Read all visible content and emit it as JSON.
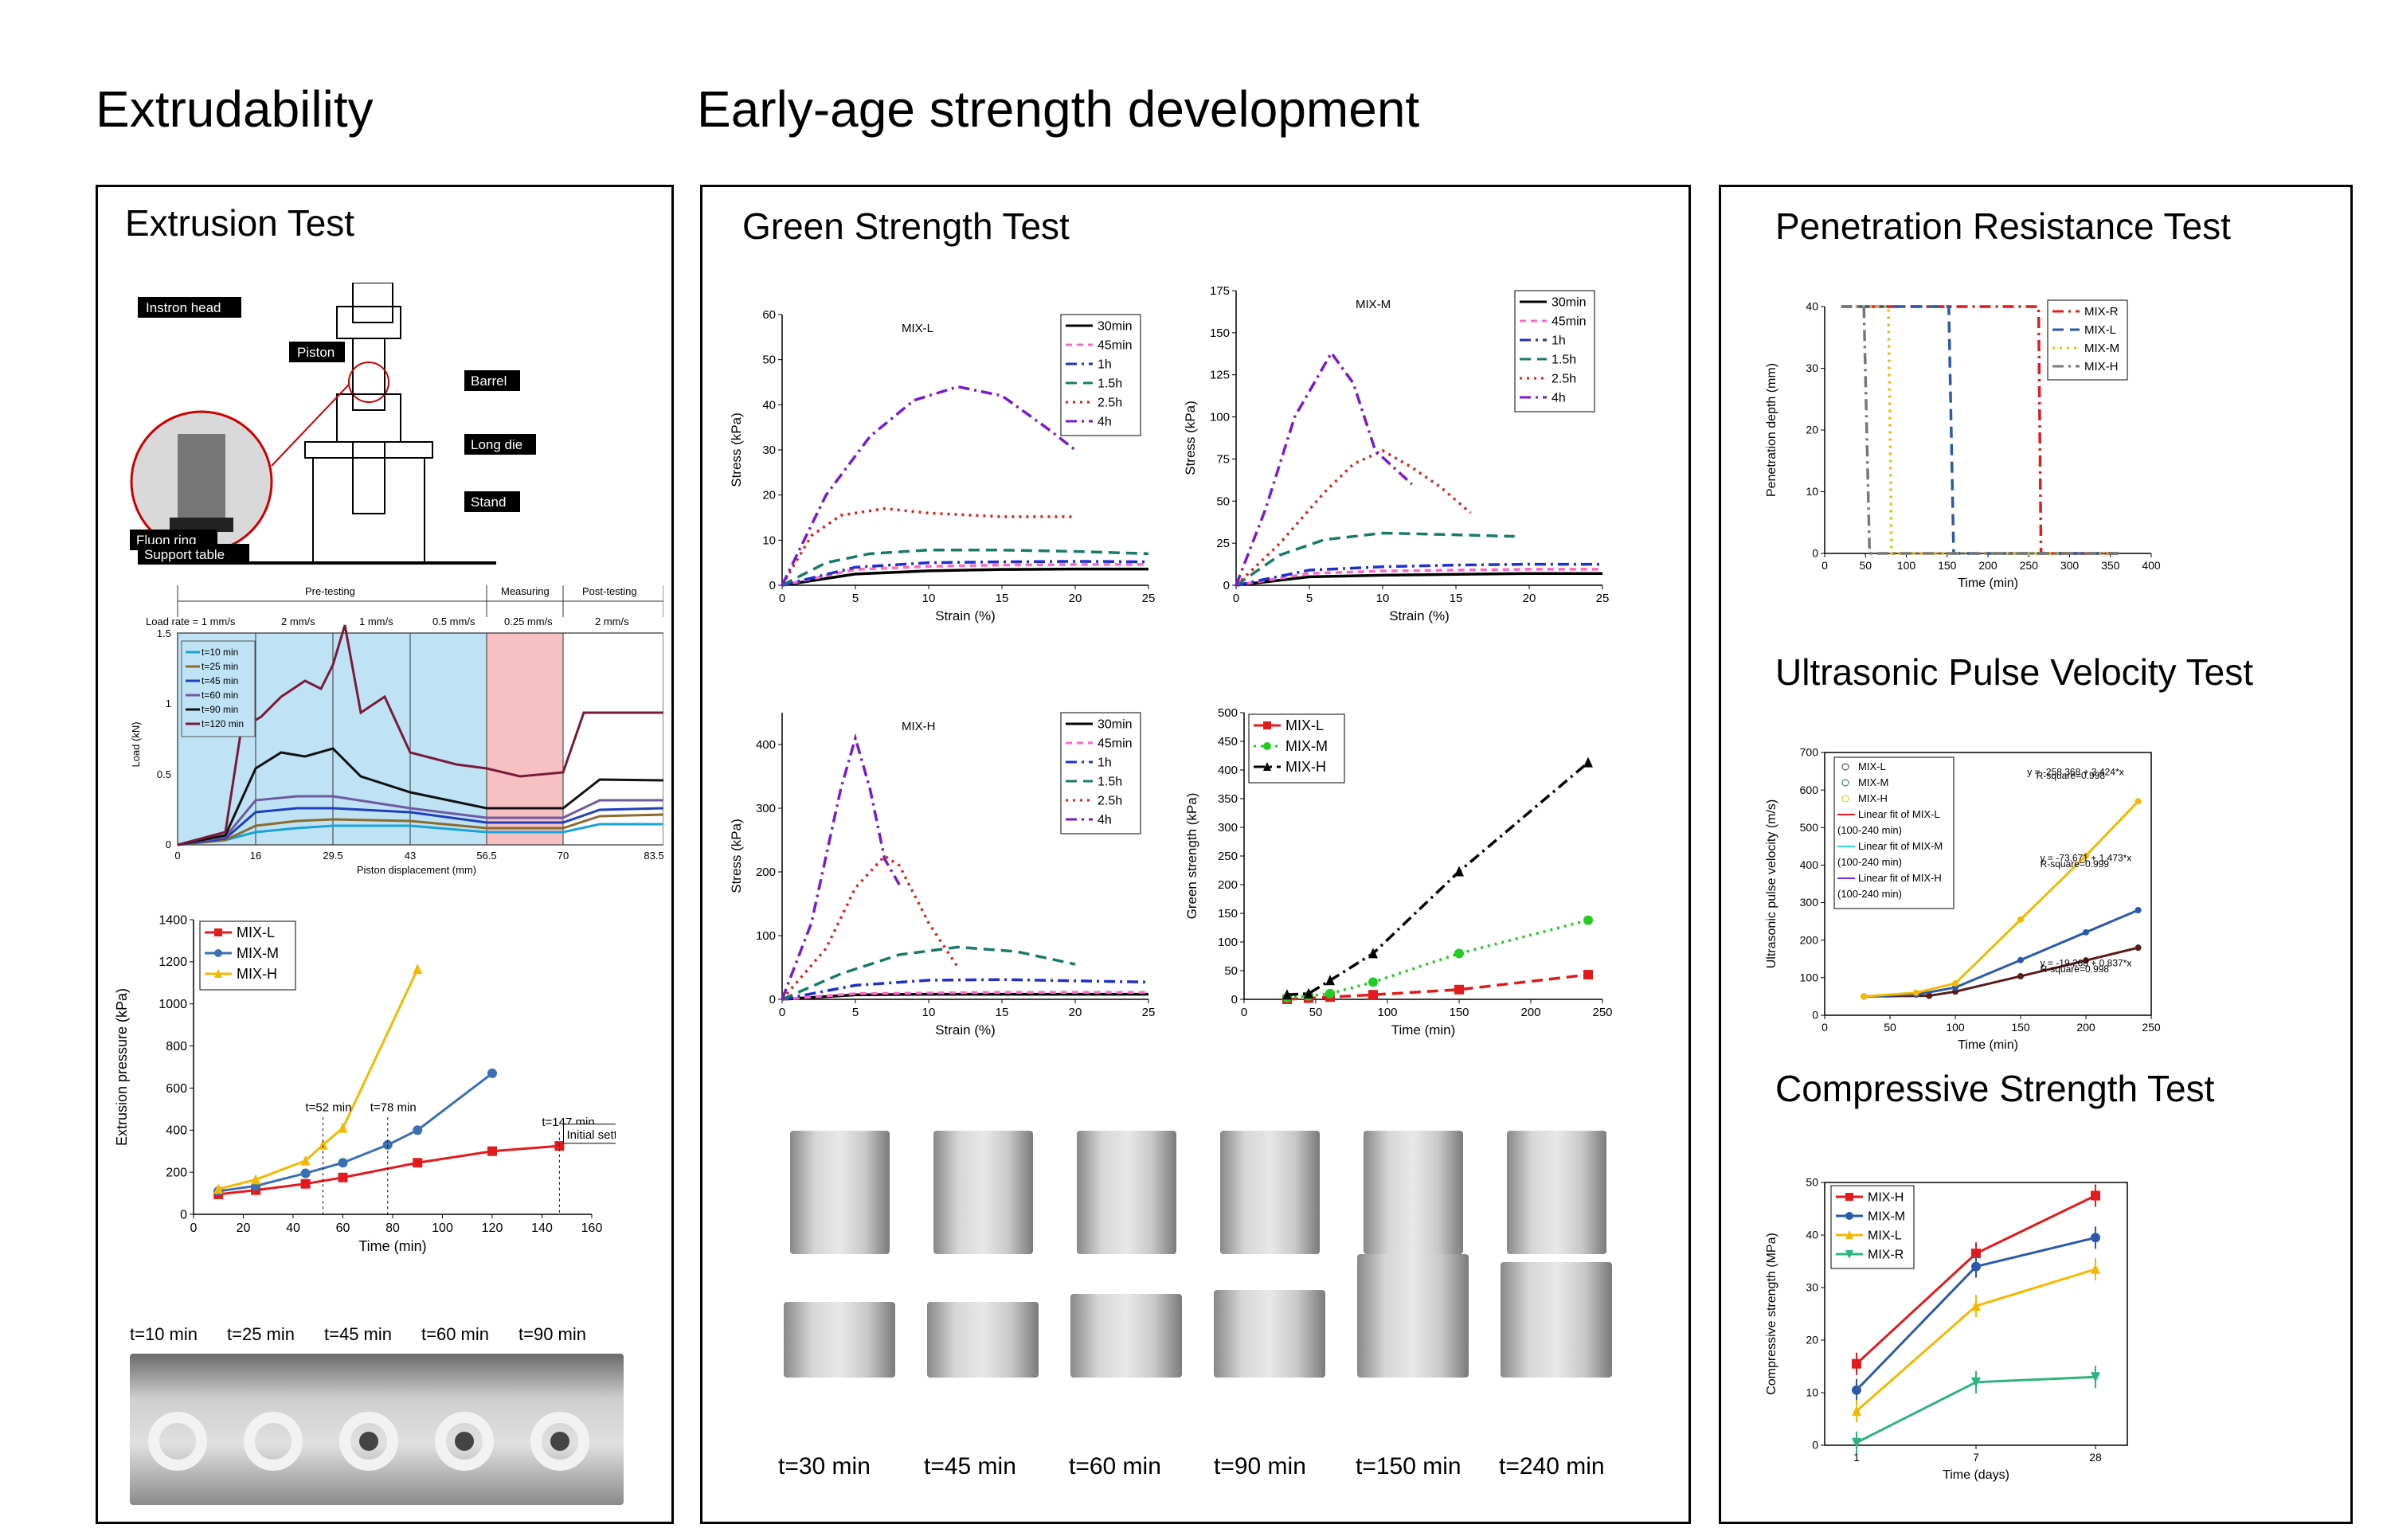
{
  "sections": {
    "extrudability": "Extrudability",
    "early_age": "Early-age strength development"
  },
  "panels": {
    "extrusion": "Extrusion Test",
    "green": "Green Strength Test",
    "penetration": "Penetration Resistance Test",
    "upv": "Ultrasonic Pulse Velocity Test",
    "compressive": "Compressive Strength Test"
  },
  "schematic": {
    "labels": [
      "Instron head",
      "Piston",
      "Barrel",
      "Long die",
      "Fluon ring",
      "Stand",
      "Support table"
    ]
  },
  "load_chart": {
    "phases": [
      "Pre-testing",
      "Measuring",
      "Post-testing"
    ],
    "rates": [
      "Load rate = 1 mm/s",
      "2 mm/s",
      "1 mm/s",
      "0.5 mm/s",
      "0.25 mm/s",
      "2 mm/s"
    ],
    "xticks": [
      "0",
      "16",
      "29.5",
      "43",
      "56.5",
      "70",
      "83.5"
    ],
    "yticks": [
      "0",
      "0.5",
      "1",
      "1.5"
    ],
    "xlabel": "Piston displacement (mm)",
    "ylabel": "Load (kN)",
    "legend": [
      "t=10 min",
      "t=25 min",
      "t=45 min",
      "t=60 min",
      "t=90 min",
      "t=120 min"
    ]
  },
  "extrusion_photos": {
    "labels": [
      "t=10 min",
      "t=25 min",
      "t=45 min",
      "t=60 min",
      "t=90 min"
    ]
  },
  "green_photos": {
    "labels": [
      "t=30 min",
      "t=45 min",
      "t=60 min",
      "t=90 min",
      "t=150 min",
      "t=240 min"
    ]
  },
  "colors": {
    "L": "#e31a1c",
    "M": "#3a6fb0",
    "H": "#f5b800",
    "R": "#2cb57a"
  },
  "chart_data": [
    {
      "id": "extrusion_pressure",
      "type": "line",
      "title": "",
      "xlabel": "Time (min)",
      "ylabel": "Extrusion pressure (kPa)",
      "xlim": [
        0,
        160
      ],
      "ylim": [
        0,
        1400
      ],
      "xticks": [
        0,
        20,
        40,
        60,
        80,
        100,
        120,
        140,
        160
      ],
      "yticks": [
        0,
        200,
        400,
        600,
        800,
        1000,
        1200,
        1400
      ],
      "series": [
        {
          "name": "MIX-L",
          "color": "#e31a1c",
          "marker": "s",
          "x": [
            10,
            25,
            45,
            60,
            90,
            120,
            147
          ],
          "y": [
            95,
            115,
            145,
            175,
            245,
            300,
            325
          ]
        },
        {
          "name": "MIX-M",
          "color": "#3a6fb0",
          "marker": "o",
          "x": [
            10,
            25,
            45,
            60,
            78,
            90,
            120
          ],
          "y": [
            110,
            135,
            195,
            245,
            330,
            400,
            670
          ]
        },
        {
          "name": "MIX-H",
          "color": "#f5b800",
          "marker": "^",
          "x": [
            10,
            25,
            45,
            52,
            60,
            90
          ],
          "y": [
            120,
            165,
            255,
            330,
            410,
            1165
          ]
        }
      ],
      "annotations": [
        "t=52 min",
        "t=78 min",
        "t=147 min",
        "Initial setting time"
      ]
    },
    {
      "id": "mix_l",
      "type": "line",
      "title": "MIX-L",
      "xlabel": "Strain (%)",
      "ylabel": "Stress (kPa)",
      "xlim": [
        0,
        25
      ],
      "ylim": [
        0,
        60
      ],
      "xticks": [
        0,
        5,
        10,
        15,
        20,
        25
      ],
      "yticks": [
        0,
        10,
        20,
        30,
        40,
        50,
        60
      ],
      "series": [
        {
          "name": "30min",
          "x": [
            0,
            5,
            10,
            15,
            20,
            25
          ],
          "y": [
            0,
            2.5,
            3.2,
            3.5,
            3.6,
            3.6
          ]
        },
        {
          "name": "45min",
          "x": [
            0,
            5,
            10,
            15,
            20,
            25
          ],
          "y": [
            0,
            3.5,
            4.2,
            4.5,
            4.6,
            4.6
          ]
        },
        {
          "name": "1h",
          "x": [
            0,
            5,
            10,
            15,
            20,
            25
          ],
          "y": [
            0,
            4,
            5,
            5.2,
            5.3,
            5.2
          ]
        },
        {
          "name": "1.5h",
          "x": [
            0,
            3,
            6,
            10,
            15,
            20,
            25
          ],
          "y": [
            0,
            5,
            7,
            7.8,
            7.8,
            7.5,
            7
          ]
        },
        {
          "name": "2.5h",
          "x": [
            0,
            2,
            4,
            7,
            10,
            15,
            20
          ],
          "y": [
            0,
            11,
            15.5,
            17,
            16,
            15.2,
            15.2
          ]
        },
        {
          "name": "4h",
          "x": [
            0,
            3,
            6,
            9,
            12,
            15,
            18,
            20
          ],
          "y": [
            0,
            20,
            33,
            41,
            44,
            42,
            35,
            30
          ]
        }
      ]
    },
    {
      "id": "mix_m",
      "type": "line",
      "title": "MIX-M",
      "xlabel": "Strain (%)",
      "ylabel": "Stress (kPa)",
      "xlim": [
        0,
        25
      ],
      "ylim": [
        0,
        175
      ],
      "xticks": [
        0,
        5,
        10,
        15,
        20,
        25
      ],
      "yticks": [
        0,
        25,
        50,
        75,
        100,
        125,
        150,
        175
      ],
      "series": [
        {
          "name": "30min",
          "x": [
            0,
            5,
            10,
            15,
            20,
            25
          ],
          "y": [
            0,
            5,
            6,
            6.5,
            7,
            7
          ]
        },
        {
          "name": "45min",
          "x": [
            0,
            5,
            10,
            15,
            20,
            25
          ],
          "y": [
            0,
            7,
            8.5,
            9,
            9.5,
            9.5
          ]
        },
        {
          "name": "1h",
          "x": [
            0,
            5,
            10,
            15,
            20,
            25
          ],
          "y": [
            0,
            9,
            11,
            12,
            12.5,
            12.5
          ]
        },
        {
          "name": "1.5h",
          "x": [
            0,
            3,
            6,
            10,
            15,
            19
          ],
          "y": [
            0,
            18,
            27,
            31,
            30,
            29
          ]
        },
        {
          "name": "2.5h",
          "x": [
            0,
            3,
            6,
            8,
            10,
            12,
            14,
            16
          ],
          "y": [
            0,
            25,
            55,
            72,
            80,
            70,
            58,
            43
          ]
        },
        {
          "name": "4h",
          "x": [
            0,
            2,
            4,
            6.5,
            8,
            9.5,
            12
          ],
          "y": [
            0,
            45,
            100,
            138,
            120,
            80,
            60
          ]
        }
      ]
    },
    {
      "id": "mix_h",
      "type": "line",
      "title": "MIX-H",
      "xlabel": "Strain (%)",
      "ylabel": "Stress (kPa)",
      "xlim": [
        0,
        25
      ],
      "ylim": [
        0,
        450
      ],
      "xticks": [
        0,
        5,
        10,
        15,
        20,
        25
      ],
      "yticks": [
        0,
        100,
        200,
        300,
        400
      ],
      "series": [
        {
          "name": "30min",
          "x": [
            0,
            5,
            10,
            15,
            20,
            25
          ],
          "y": [
            0,
            7,
            8,
            8,
            8,
            8
          ]
        },
        {
          "name": "45min",
          "x": [
            0,
            5,
            10,
            15,
            20,
            25
          ],
          "y": [
            0,
            9,
            10,
            11,
            11,
            11
          ]
        },
        {
          "name": "1h",
          "x": [
            0,
            5,
            10,
            15,
            20,
            25
          ],
          "y": [
            0,
            22,
            30,
            31,
            29,
            27
          ]
        },
        {
          "name": "1.5h",
          "x": [
            0,
            4,
            8,
            12,
            16,
            20
          ],
          "y": [
            0,
            40,
            70,
            82,
            75,
            55
          ]
        },
        {
          "name": "2.5h",
          "x": [
            0,
            3,
            5,
            7,
            8,
            10,
            12
          ],
          "y": [
            0,
            80,
            175,
            225,
            210,
            120,
            50
          ]
        },
        {
          "name": "4h",
          "x": [
            0,
            2,
            4,
            5,
            6,
            7,
            8
          ],
          "y": [
            0,
            120,
            330,
            410,
            330,
            220,
            180
          ]
        }
      ]
    },
    {
      "id": "green_strength",
      "type": "line",
      "title": "",
      "xlabel": "Time (min)",
      "ylabel": "Green strength (kPa)",
      "xlim": [
        0,
        250
      ],
      "ylim": [
        0,
        500
      ],
      "xticks": [
        0,
        50,
        100,
        150,
        200,
        250
      ],
      "yticks": [
        0,
        50,
        100,
        150,
        200,
        250,
        300,
        350,
        400,
        450,
        500
      ],
      "series": [
        {
          "name": "MIX-L",
          "x": [
            30,
            45,
            60,
            90,
            150,
            240
          ],
          "y": [
            0,
            2,
            4,
            8,
            17,
            43
          ]
        },
        {
          "name": "MIX-M",
          "x": [
            30,
            45,
            60,
            90,
            150,
            240
          ],
          "y": [
            3,
            6,
            10,
            30,
            80,
            138
          ]
        },
        {
          "name": "MIX-H",
          "x": [
            30,
            45,
            60,
            90,
            150,
            240
          ],
          "y": [
            8,
            10,
            33,
            80,
            223,
            413
          ]
        }
      ]
    },
    {
      "id": "penetration",
      "type": "line",
      "title": "",
      "xlabel": "Time (min)",
      "ylabel": "Penetration depth (mm)",
      "xlim": [
        0,
        400
      ],
      "ylim": [
        0,
        40
      ],
      "xticks": [
        0,
        50,
        100,
        150,
        200,
        250,
        300,
        350,
        400
      ],
      "yticks": [
        0,
        10,
        20,
        30,
        40
      ],
      "series": [
        {
          "name": "MIX-R",
          "x": [
            20,
            262,
            265,
            360
          ],
          "y": [
            40,
            40,
            0,
            0
          ]
        },
        {
          "name": "MIX-L",
          "x": [
            20,
            152,
            158,
            360
          ],
          "y": [
            40,
            40,
            0,
            0
          ]
        },
        {
          "name": "MIX-M",
          "x": [
            20,
            78,
            82,
            360
          ],
          "y": [
            40,
            40,
            0,
            0
          ]
        },
        {
          "name": "MIX-H",
          "x": [
            20,
            48,
            55,
            360
          ],
          "y": [
            40,
            40,
            0,
            0
          ]
        }
      ]
    },
    {
      "id": "upv",
      "type": "line",
      "title": "",
      "xlabel": "Time (min)",
      "ylabel": "Ultrasonic pulse velocity (m/s)",
      "xlim": [
        0,
        250
      ],
      "ylim": [
        0,
        700
      ],
      "xticks": [
        0,
        50,
        100,
        150,
        200,
        250
      ],
      "yticks": [
        0,
        100,
        200,
        300,
        400,
        500,
        600,
        700
      ],
      "series": [
        {
          "name": "MIX-L",
          "x": [
            30,
            80,
            100,
            150,
            200,
            240
          ],
          "y": [
            50,
            52,
            63,
            104,
            146,
            180
          ]
        },
        {
          "name": "MIX-M",
          "x": [
            30,
            70,
            100,
            150,
            200,
            240
          ],
          "y": [
            50,
            55,
            74,
            147,
            221,
            280
          ]
        },
        {
          "name": "MIX-H",
          "x": [
            30,
            70,
            100,
            150,
            200,
            240
          ],
          "y": [
            50,
            60,
            85,
            255,
            425,
            570
          ]
        }
      ],
      "legend": [
        "MIX-L",
        "MIX-M",
        "MIX-H",
        "Linear fit of MIX-L",
        "(100-240 min)",
        "Linear fit of MIX-M",
        "(100-240 min)",
        "Linear fit of MIX-H",
        "(100-240 min)"
      ],
      "annotations": [
        "y = -258.368 + 3.424*x",
        "R-square=0.998",
        "y = -73.671 + 1.473*x",
        "R-square=0.999",
        "y = -19.268 + 0.837*x",
        "R-square=0.998"
      ]
    },
    {
      "id": "compressive",
      "type": "line",
      "title": "",
      "xlabel": "Time (days)",
      "ylabel": "Compressive strength (MPa)",
      "categories": [
        "1",
        "7",
        "28"
      ],
      "ylim": [
        0,
        50
      ],
      "yticks": [
        0,
        10,
        20,
        30,
        40,
        50
      ],
      "series": [
        {
          "name": "MIX-H",
          "values": [
            15.5,
            36.5,
            47.5
          ]
        },
        {
          "name": "MIX-M",
          "values": [
            10.5,
            34,
            39.5
          ]
        },
        {
          "name": "MIX-L",
          "values": [
            6.5,
            26.5,
            33.5
          ]
        },
        {
          "name": "MIX-R",
          "values": [
            0.5,
            12,
            13
          ]
        }
      ]
    }
  ]
}
